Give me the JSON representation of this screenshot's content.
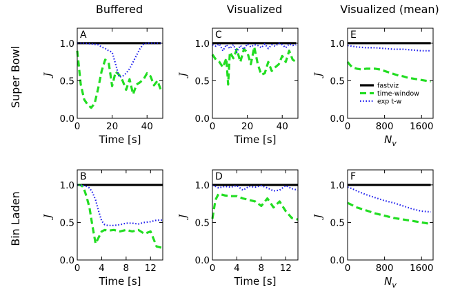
{
  "figure": {
    "column_titles": [
      "Buffered",
      "Visualized",
      "Visualized (mean)"
    ],
    "row_titles": [
      "Super Bowl",
      "Bin Laden"
    ]
  },
  "legend": {
    "placement": "inside panel E, lower-right",
    "entries": [
      {
        "label": "fastviz",
        "color": "#000000",
        "style": "solid"
      },
      {
        "label": "time-window",
        "color": "#22dd22",
        "style": "dashed"
      },
      {
        "label": "exp t-w",
        "color": "#2222ee",
        "style": "dotted"
      }
    ]
  },
  "chart_data": [
    {
      "type": "line",
      "letter": "A",
      "xlabel": "Time [s]",
      "ylabel": "J",
      "xlim": [
        0,
        49
      ],
      "ylim": [
        0,
        1.2
      ],
      "xticks": [
        0,
        20,
        40
      ],
      "xtick_labels": [
        "0",
        "20",
        "40"
      ],
      "yticks": [
        0,
        0.5,
        1.0
      ],
      "ytick_labels": [
        "0.0",
        "0.5",
        "1.0"
      ],
      "series": [
        {
          "name": "fastviz",
          "x": [
            0,
            48
          ],
          "y": [
            1.0,
            1.0
          ]
        },
        {
          "name": "time-window",
          "x": [
            0,
            2,
            4,
            6,
            8,
            10,
            12,
            14,
            16,
            18,
            20,
            22,
            24,
            26,
            28,
            30,
            32,
            34,
            36,
            38,
            40,
            42,
            44,
            46,
            48
          ],
          "y": [
            0.9,
            0.45,
            0.25,
            0.18,
            0.14,
            0.2,
            0.4,
            0.63,
            0.78,
            0.74,
            0.43,
            0.62,
            0.58,
            0.5,
            0.38,
            0.52,
            0.32,
            0.45,
            0.48,
            0.52,
            0.6,
            0.56,
            0.44,
            0.5,
            0.37
          ]
        },
        {
          "name": "exp t-w",
          "x": [
            0,
            4,
            8,
            12,
            14,
            16,
            18,
            20,
            22,
            24,
            26,
            28,
            30,
            32,
            34,
            36,
            38,
            40,
            44,
            48
          ],
          "y": [
            1.0,
            1.0,
            0.99,
            0.98,
            0.95,
            0.93,
            0.9,
            0.88,
            0.72,
            0.55,
            0.56,
            0.6,
            0.66,
            0.75,
            0.84,
            0.93,
            0.99,
            1.0,
            1.0,
            1.0
          ]
        }
      ]
    },
    {
      "type": "line",
      "letter": "C",
      "xlabel": "Time [s]",
      "ylabel": "J",
      "xlim": [
        0,
        49
      ],
      "ylim": [
        0,
        1.2
      ],
      "xticks": [
        0,
        20,
        40
      ],
      "xtick_labels": [
        "0",
        "20",
        "40"
      ],
      "yticks": [
        0,
        0.5,
        1.0
      ],
      "ytick_labels": [
        "0.0",
        "0.5",
        "1.0"
      ],
      "series": [
        {
          "name": "fastviz",
          "x": [
            0,
            48
          ],
          "y": [
            1.0,
            1.0
          ]
        },
        {
          "name": "time-window",
          "x": [
            0,
            2,
            4,
            6,
            8,
            9,
            10,
            12,
            14,
            16,
            18,
            20,
            22,
            24,
            26,
            28,
            30,
            32,
            34,
            36,
            38,
            40,
            42,
            44,
            46,
            48
          ],
          "y": [
            0.85,
            0.78,
            0.75,
            0.68,
            0.8,
            0.45,
            0.88,
            0.8,
            0.92,
            0.75,
            0.92,
            0.88,
            0.72,
            0.95,
            0.72,
            0.58,
            0.6,
            0.75,
            0.63,
            0.68,
            0.72,
            0.83,
            0.75,
            0.9,
            0.78,
            0.75
          ]
        },
        {
          "name": "exp t-w",
          "x": [
            0,
            2,
            4,
            6,
            8,
            10,
            12,
            14,
            16,
            18,
            20,
            22,
            24,
            26,
            28,
            30,
            32,
            34,
            36,
            38,
            40,
            42,
            44,
            46,
            48
          ],
          "y": [
            0.98,
            0.96,
            0.99,
            0.9,
            0.98,
            0.93,
            0.98,
            0.88,
            0.97,
            0.92,
            0.99,
            0.95,
            0.98,
            0.97,
            0.94,
            0.99,
            0.93,
            0.98,
            0.96,
            1.0,
            0.98,
            0.94,
            0.99,
            0.97,
            0.98
          ]
        }
      ]
    },
    {
      "type": "line",
      "letter": "E",
      "xlabel": "N_v",
      "ylabel": "J",
      "xlim": [
        0,
        1850
      ],
      "ylim": [
        0,
        1.2
      ],
      "xticks": [
        0,
        800,
        1600
      ],
      "xtick_labels": [
        "0",
        "800",
        "1600"
      ],
      "yticks": [
        0,
        0.5,
        1.0
      ],
      "ytick_labels": [
        "0.0",
        "0.5",
        "1.0"
      ],
      "series": [
        {
          "name": "fastviz",
          "x": [
            0,
            1800
          ],
          "y": [
            1.0,
            1.0
          ]
        },
        {
          "name": "time-window",
          "x": [
            0,
            40,
            100,
            200,
            300,
            400,
            500,
            600,
            700,
            800,
            900,
            1000,
            1100,
            1200,
            1300,
            1400,
            1500,
            1600,
            1700,
            1800
          ],
          "y": [
            0.75,
            0.72,
            0.68,
            0.66,
            0.65,
            0.66,
            0.66,
            0.66,
            0.65,
            0.63,
            0.61,
            0.59,
            0.57,
            0.56,
            0.54,
            0.53,
            0.52,
            0.51,
            0.5,
            0.49
          ]
        },
        {
          "name": "exp t-w",
          "x": [
            0,
            100,
            200,
            400,
            600,
            800,
            1000,
            1200,
            1400,
            1600,
            1800
          ],
          "y": [
            0.97,
            0.96,
            0.95,
            0.94,
            0.94,
            0.93,
            0.92,
            0.92,
            0.91,
            0.9,
            0.9
          ]
        }
      ]
    },
    {
      "type": "line",
      "letter": "B",
      "xlabel": "Time [s]",
      "ylabel": "J",
      "xlim": [
        0,
        14
      ],
      "ylim": [
        0,
        1.2
      ],
      "xticks": [
        0,
        4,
        8,
        12
      ],
      "xtick_labels": [
        "0",
        "4",
        "8",
        "12"
      ],
      "yticks": [
        0,
        0.5,
        1.0
      ],
      "ytick_labels": [
        "0.0",
        "0.5",
        "1.0"
      ],
      "series": [
        {
          "name": "fastviz",
          "x": [
            0,
            14
          ],
          "y": [
            1.0,
            1.0
          ]
        },
        {
          "name": "time-window",
          "x": [
            0,
            0.5,
            1,
            1.5,
            2,
            2.5,
            3,
            3.5,
            4,
            4.5,
            5,
            6,
            7,
            8,
            9,
            10,
            11,
            12,
            13,
            14
          ],
          "y": [
            1.0,
            1.0,
            0.97,
            0.85,
            0.7,
            0.45,
            0.22,
            0.3,
            0.38,
            0.4,
            0.39,
            0.4,
            0.38,
            0.4,
            0.38,
            0.4,
            0.35,
            0.38,
            0.18,
            0.16
          ]
        },
        {
          "name": "exp t-w",
          "x": [
            0,
            1,
            1.5,
            2,
            2.5,
            3,
            3.5,
            4,
            4.5,
            5,
            6,
            7,
            8,
            9,
            10,
            11,
            12,
            13,
            14
          ],
          "y": [
            1.0,
            0.99,
            0.98,
            0.96,
            0.9,
            0.8,
            0.65,
            0.52,
            0.47,
            0.46,
            0.46,
            0.47,
            0.49,
            0.49,
            0.48,
            0.5,
            0.51,
            0.53,
            0.53
          ]
        }
      ]
    },
    {
      "type": "line",
      "letter": "D",
      "xlabel": "Time [s]",
      "ylabel": "J",
      "xlim": [
        0,
        14
      ],
      "ylim": [
        0,
        1.2
      ],
      "xticks": [
        0,
        4,
        8,
        12
      ],
      "xtick_labels": [
        "0",
        "4",
        "8",
        "12"
      ],
      "yticks": [
        0,
        0.5,
        1.0
      ],
      "ytick_labels": [
        "0.0",
        "0.5",
        "1.0"
      ],
      "series": [
        {
          "name": "fastviz",
          "x": [
            0,
            14
          ],
          "y": [
            1.0,
            1.0
          ]
        },
        {
          "name": "time-window",
          "x": [
            0,
            0.5,
            1,
            2,
            3,
            4,
            5,
            6,
            7,
            8,
            9,
            10,
            11,
            12,
            13,
            14
          ],
          "y": [
            0.55,
            0.8,
            0.88,
            0.86,
            0.85,
            0.85,
            0.82,
            0.8,
            0.78,
            0.72,
            0.82,
            0.7,
            0.78,
            0.65,
            0.56,
            0.54
          ]
        },
        {
          "name": "exp t-w",
          "x": [
            0,
            1,
            2,
            3,
            4,
            5,
            6,
            7,
            8,
            9,
            10,
            11,
            12,
            13,
            14
          ],
          "y": [
            1.0,
            0.96,
            0.98,
            0.97,
            0.99,
            0.93,
            0.98,
            0.97,
            0.99,
            0.96,
            0.92,
            0.93,
            0.99,
            0.95,
            0.93
          ]
        }
      ]
    },
    {
      "type": "line",
      "letter": "F",
      "xlabel": "N_v",
      "ylabel": "J",
      "xlim": [
        0,
        1850
      ],
      "ylim": [
        0,
        1.2
      ],
      "xticks": [
        0,
        800,
        1600
      ],
      "xtick_labels": [
        "0",
        "800",
        "1600"
      ],
      "yticks": [
        0,
        0.5,
        1.0
      ],
      "ytick_labels": [
        "0.0",
        "0.5",
        "1.0"
      ],
      "series": [
        {
          "name": "fastviz",
          "x": [
            0,
            1800
          ],
          "y": [
            1.0,
            1.0
          ]
        },
        {
          "name": "time-window",
          "x": [
            0,
            100,
            200,
            400,
            600,
            800,
            1000,
            1200,
            1400,
            1600,
            1800
          ],
          "y": [
            0.76,
            0.73,
            0.7,
            0.66,
            0.62,
            0.59,
            0.56,
            0.54,
            0.52,
            0.5,
            0.48
          ]
        },
        {
          "name": "exp t-w",
          "x": [
            0,
            100,
            200,
            400,
            600,
            800,
            1000,
            1200,
            1400,
            1600,
            1800
          ],
          "y": [
            0.97,
            0.95,
            0.92,
            0.87,
            0.83,
            0.79,
            0.76,
            0.72,
            0.68,
            0.65,
            0.64
          ]
        }
      ]
    }
  ]
}
